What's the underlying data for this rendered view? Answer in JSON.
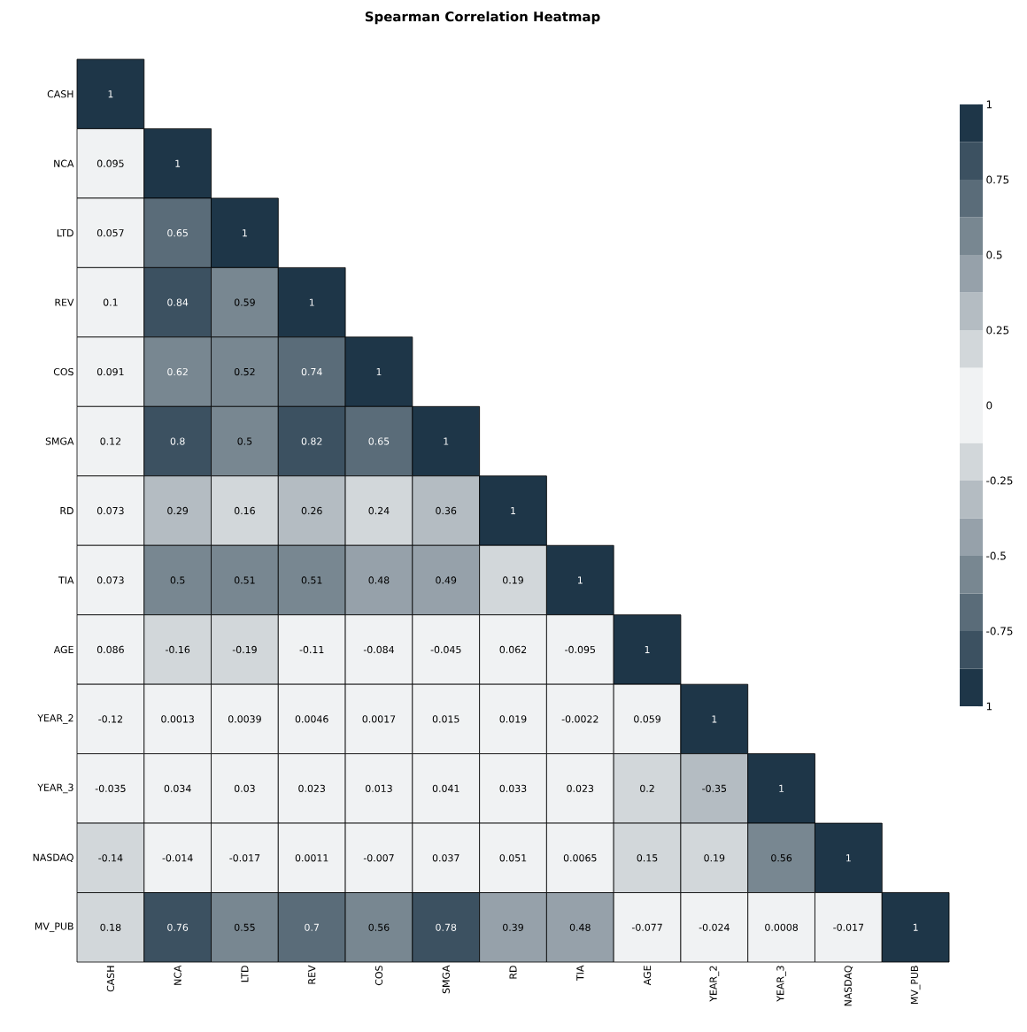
{
  "chart_data": {
    "type": "heatmap",
    "title": "**Spearman Correlation Heatmap**",
    "categories": [
      "CASH",
      "NCA",
      "LTD",
      "REV",
      "COS",
      "SMGA",
      "RD",
      "TIA",
      "AGE",
      "YEAR_2",
      "YEAR_3",
      "NASDAQ",
      "MV_PUB"
    ],
    "y_categories": [
      "CASH",
      "NCA",
      "LTD",
      "REV",
      "COS",
      "SMGA",
      "RD",
      "TIA",
      "AGE",
      "YEAR_2",
      "YEAR_3",
      "NASDAQ",
      "MV_PUB"
    ],
    "cells": [
      [
        1,
        null,
        null,
        null,
        null,
        null,
        null,
        null,
        null,
        null,
        null,
        null,
        null
      ],
      [
        0.095,
        1,
        null,
        null,
        null,
        null,
        null,
        null,
        null,
        null,
        null,
        null,
        null
      ],
      [
        0.057,
        0.65,
        1,
        null,
        null,
        null,
        null,
        null,
        null,
        null,
        null,
        null,
        null
      ],
      [
        0.1,
        0.84,
        0.59,
        1,
        null,
        null,
        null,
        null,
        null,
        null,
        null,
        null,
        null
      ],
      [
        0.091,
        0.62,
        0.52,
        0.74,
        1,
        null,
        null,
        null,
        null,
        null,
        null,
        null,
        null
      ],
      [
        0.12,
        0.8,
        0.5,
        0.82,
        0.65,
        1,
        null,
        null,
        null,
        null,
        null,
        null,
        null
      ],
      [
        0.073,
        0.29,
        0.16,
        0.26,
        0.24,
        0.36,
        1,
        null,
        null,
        null,
        null,
        null,
        null
      ],
      [
        0.073,
        0.5,
        0.51,
        0.51,
        0.48,
        0.49,
        0.19,
        1,
        null,
        null,
        null,
        null,
        null
      ],
      [
        0.086,
        -0.16,
        -0.19,
        -0.11,
        -0.084,
        -0.045,
        0.062,
        -0.095,
        1,
        null,
        null,
        null,
        null
      ],
      [
        -0.12,
        0.0013,
        0.0039,
        0.0046,
        0.0017,
        0.015,
        0.019,
        -0.0022,
        0.059,
        1,
        null,
        null,
        null
      ],
      [
        -0.035,
        0.034,
        0.03,
        0.023,
        0.013,
        0.041,
        0.033,
        0.023,
        0.2,
        -0.35,
        1,
        null,
        null
      ],
      [
        -0.14,
        -0.014,
        -0.017,
        0.0011,
        -0.007,
        0.037,
        0.051,
        0.0065,
        0.15,
        0.19,
        0.56,
        1,
        null
      ],
      [
        0.18,
        0.76,
        0.55,
        0.7,
        0.56,
        0.78,
        0.39,
        0.48,
        -0.077,
        -0.024,
        0.0008,
        -0.017,
        1
      ]
    ],
    "data_labels": true,
    "clim": [
      -1,
      1
    ],
    "cticks": [
      1,
      0.75,
      0.5,
      0.25,
      0,
      -0.25,
      -0.5,
      -0.75,
      {
        "value": -1,
        "label": "1"
      }
    ]
  }
}
